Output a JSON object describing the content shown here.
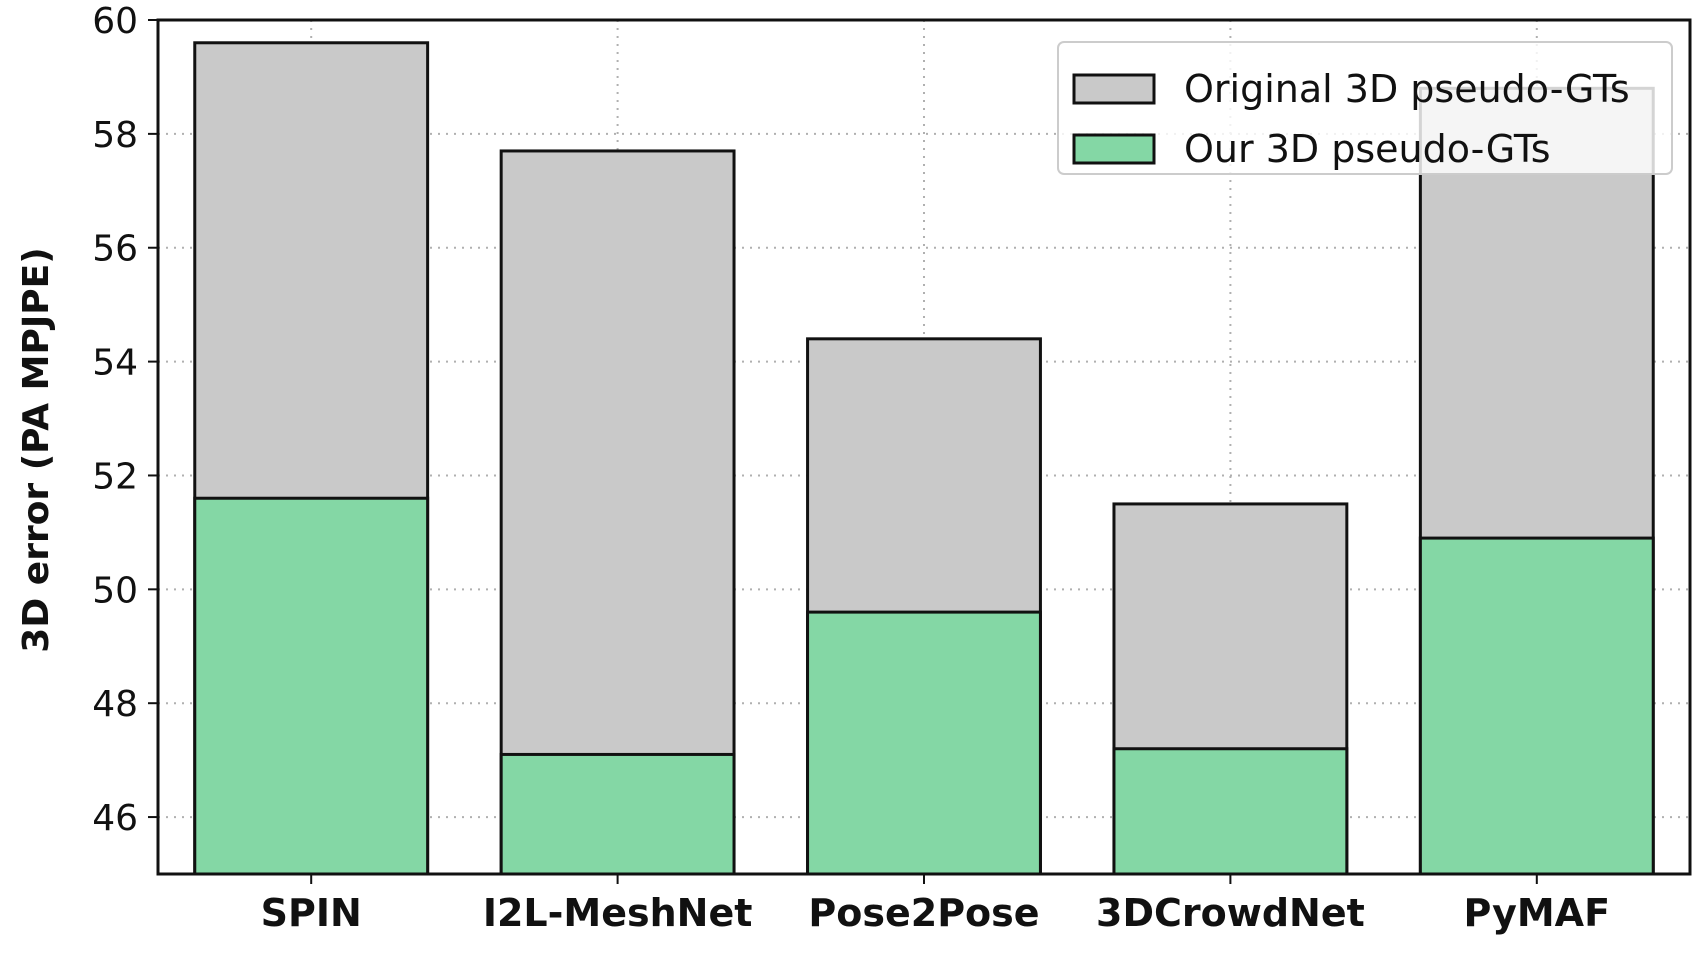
{
  "chart_data": {
    "type": "bar",
    "title": "",
    "xlabel": "",
    "ylabel": "3D error (PA MPJPE)",
    "ylim": [
      45,
      60
    ],
    "yticks": [
      46,
      48,
      50,
      52,
      54,
      56,
      58,
      60
    ],
    "grid": true,
    "legend_position": "top-right",
    "categories": [
      "SPIN",
      "I2L-MeshNet",
      "Pose2Pose",
      "3DCrowdNet",
      "PyMAF"
    ],
    "series": [
      {
        "name": "Original 3D pseudo-GTs",
        "color": "#c9c9c9",
        "values": [
          59.6,
          57.7,
          54.4,
          51.5,
          58.8
        ]
      },
      {
        "name": "Our 3D pseudo-GTs",
        "color": "#84d7a5",
        "values": [
          51.6,
          47.1,
          49.6,
          47.2,
          50.9
        ]
      }
    ]
  }
}
